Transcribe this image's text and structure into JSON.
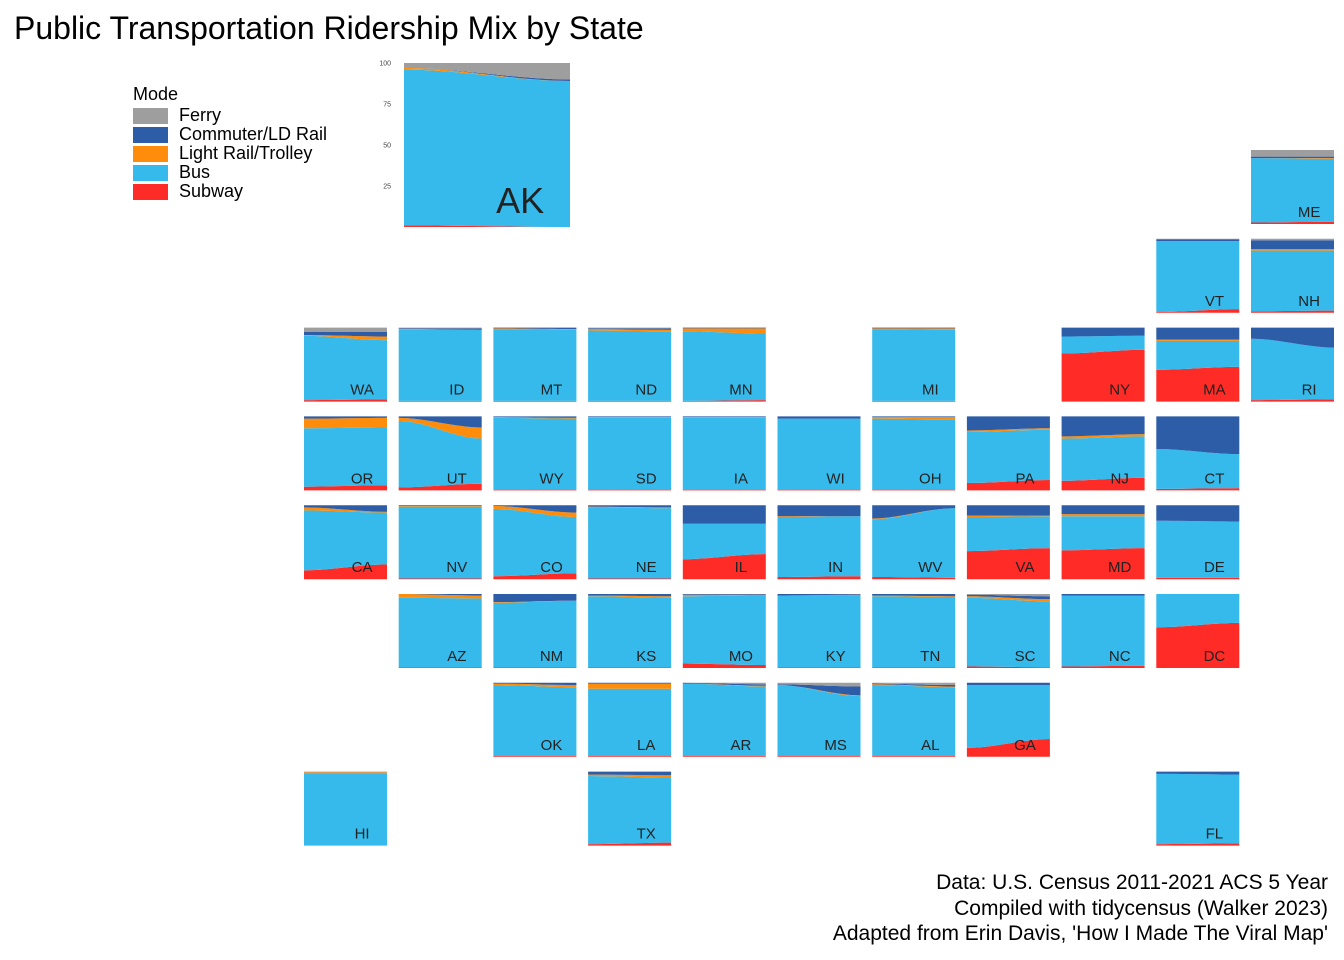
{
  "title": "Public Transportation Ridership Mix by State",
  "legend": {
    "title": "Mode",
    "items": [
      {
        "label": "Ferry",
        "color": "#9E9E9E"
      },
      {
        "label": "Commuter/LD Rail",
        "color": "#2E5DA8"
      },
      {
        "label": "Light Rail/Trolley",
        "color": "#FF8C0A"
      },
      {
        "label": "Bus",
        "color": "#36BAEB"
      },
      {
        "label": "Subway",
        "color": "#FF2B26"
      }
    ]
  },
  "caption": [
    "Data: U.S. Census 2011-2021 ACS 5 Year",
    "Compiled with tidycensus (Walker 2023) ",
    "Adapted from Erin Davis, 'How I Made The Viral Map'"
  ],
  "chart_data": {
    "type": "area",
    "description_of_values": "stacked share (%) per mode, start and end of 2011-2021 period",
    "series_order_bottom_to_top": [
      "Subway",
      "Bus",
      "Light Rail/Trolley",
      "Commuter/LD Rail",
      "Ferry"
    ],
    "ak_yticks": [
      25,
      50,
      75,
      100
    ],
    "ylim": [
      0,
      100
    ],
    "states": [
      {
        "abbr": "AK",
        "start": [
          1,
          95,
          1,
          0,
          3
        ],
        "end": [
          0,
          89,
          0,
          1,
          10
        ]
      },
      {
        "abbr": "ME",
        "start": [
          2,
          87,
          0,
          2,
          9
        ],
        "end": [
          3,
          85,
          1,
          2,
          9
        ]
      },
      {
        "abbr": "VT",
        "start": [
          1,
          96,
          0,
          2,
          1
        ],
        "end": [
          5,
          92,
          0,
          2,
          1
        ]
      },
      {
        "abbr": "NH",
        "start": [
          2,
          82,
          2,
          12,
          2
        ],
        "end": [
          3,
          81,
          2,
          12,
          2
        ]
      },
      {
        "abbr": "WA",
        "start": [
          2,
          87,
          1,
          4,
          6
        ],
        "end": [
          3,
          80,
          5,
          6,
          6
        ]
      },
      {
        "abbr": "ID",
        "start": [
          1,
          96,
          1,
          1,
          1
        ],
        "end": [
          1,
          96,
          0,
          2,
          1
        ]
      },
      {
        "abbr": "MT",
        "start": [
          1,
          97,
          1,
          1,
          0
        ],
        "end": [
          1,
          96,
          1,
          2,
          0
        ]
      },
      {
        "abbr": "ND",
        "start": [
          1,
          95,
          2,
          1,
          1
        ],
        "end": [
          1,
          94,
          2,
          2,
          1
        ]
      },
      {
        "abbr": "MN",
        "start": [
          1,
          94,
          4,
          1,
          0
        ],
        "end": [
          2,
          90,
          7,
          1,
          0
        ]
      },
      {
        "abbr": "MI",
        "start": [
          1,
          97,
          1,
          1,
          0
        ],
        "end": [
          1,
          96,
          2,
          1,
          0
        ]
      },
      {
        "abbr": "NY",
        "start": [
          65,
          23,
          0,
          12,
          0
        ],
        "end": [
          70,
          19,
          0,
          11,
          0
        ]
      },
      {
        "abbr": "MA",
        "start": [
          43,
          39,
          2,
          16,
          0
        ],
        "end": [
          47,
          35,
          2,
          16,
          0
        ]
      },
      {
        "abbr": "RI",
        "start": [
          2,
          83,
          0,
          15,
          0
        ],
        "end": [
          3,
          70,
          0,
          27,
          0
        ]
      },
      {
        "abbr": "OR",
        "start": [
          5,
          79,
          13,
          3,
          0
        ],
        "end": [
          7,
          78,
          13,
          2,
          0
        ]
      },
      {
        "abbr": "UT",
        "start": [
          4,
          90,
          4,
          2,
          0
        ],
        "end": [
          9,
          61,
          15,
          15,
          0
        ]
      },
      {
        "abbr": "WY",
        "start": [
          1,
          97,
          1,
          1,
          0
        ],
        "end": [
          1,
          96,
          1,
          2,
          0
        ]
      },
      {
        "abbr": "SD",
        "start": [
          1,
          97,
          1,
          1,
          0
        ],
        "end": [
          1,
          97,
          1,
          1,
          0
        ]
      },
      {
        "abbr": "IA",
        "start": [
          1,
          97,
          1,
          1,
          0
        ],
        "end": [
          1,
          97,
          1,
          1,
          0
        ]
      },
      {
        "abbr": "WI",
        "start": [
          1,
          96,
          0,
          3,
          0
        ],
        "end": [
          1,
          96,
          0,
          3,
          0
        ]
      },
      {
        "abbr": "OH",
        "start": [
          1,
          96,
          2,
          1,
          0
        ],
        "end": [
          1,
          95,
          3,
          1,
          0
        ]
      },
      {
        "abbr": "PA",
        "start": [
          10,
          69,
          2,
          19,
          0
        ],
        "end": [
          14,
          68,
          2,
          16,
          0
        ]
      },
      {
        "abbr": "NJ",
        "start": [
          13,
          57,
          3,
          27,
          0
        ],
        "end": [
          17,
          56,
          3,
          24,
          0
        ]
      },
      {
        "abbr": "CT",
        "start": [
          2,
          54,
          0,
          44,
          0
        ],
        "end": [
          3,
          46,
          0,
          51,
          0
        ]
      },
      {
        "abbr": "CA",
        "start": [
          12,
          81,
          4,
          3,
          0
        ],
        "end": [
          20,
          70,
          1,
          9,
          0
        ]
      },
      {
        "abbr": "NV",
        "start": [
          1,
          97,
          1,
          1,
          0
        ],
        "end": [
          1,
          97,
          1,
          1,
          0
        ]
      },
      {
        "abbr": "CO",
        "start": [
          4,
          91,
          4,
          1,
          0
        ],
        "end": [
          8,
          76,
          6,
          10,
          0
        ]
      },
      {
        "abbr": "NE",
        "start": [
          1,
          96,
          1,
          2,
          0
        ],
        "end": [
          1,
          95,
          1,
          3,
          0
        ]
      },
      {
        "abbr": "IL",
        "start": [
          27,
          48,
          0,
          25,
          0
        ],
        "end": [
          34,
          41,
          0,
          25,
          0
        ]
      },
      {
        "abbr": "IN",
        "start": [
          3,
          81,
          1,
          15,
          0
        ],
        "end": [
          4,
          81,
          0,
          15,
          0
        ]
      },
      {
        "abbr": "WV",
        "start": [
          3,
          78,
          1,
          18,
          0
        ],
        "end": [
          2,
          94,
          0,
          4,
          0
        ]
      },
      {
        "abbr": "VA",
        "start": [
          38,
          46,
          2,
          14,
          0
        ],
        "end": [
          42,
          43,
          1,
          14,
          0
        ]
      },
      {
        "abbr": "MD",
        "start": [
          39,
          46,
          3,
          12,
          0
        ],
        "end": [
          42,
          43,
          3,
          12,
          0
        ]
      },
      {
        "abbr": "DE",
        "start": [
          2,
          77,
          0,
          21,
          0
        ],
        "end": [
          2,
          76,
          0,
          22,
          0
        ]
      },
      {
        "abbr": "AZ",
        "start": [
          1,
          94,
          5,
          0,
          0
        ],
        "end": [
          1,
          93,
          4,
          2,
          0
        ]
      },
      {
        "abbr": "NM",
        "start": [
          1,
          87,
          1,
          11,
          0
        ],
        "end": [
          1,
          90,
          0,
          9,
          0
        ]
      },
      {
        "abbr": "KS",
        "start": [
          1,
          96,
          1,
          2,
          0
        ],
        "end": [
          1,
          94,
          2,
          3,
          0
        ]
      },
      {
        "abbr": "MO",
        "start": [
          6,
          91,
          2,
          1,
          0
        ],
        "end": [
          4,
          94,
          1,
          1,
          0
        ]
      },
      {
        "abbr": "KY",
        "start": [
          1,
          97,
          0,
          2,
          0
        ],
        "end": [
          1,
          97,
          1,
          1,
          0
        ]
      },
      {
        "abbr": "TN",
        "start": [
          1,
          96,
          1,
          2,
          0
        ],
        "end": [
          1,
          95,
          1,
          3,
          0
        ]
      },
      {
        "abbr": "SC",
        "start": [
          2,
          93,
          2,
          2,
          1
        ],
        "end": [
          1,
          89,
          3,
          4,
          3
        ]
      },
      {
        "abbr": "NC",
        "start": [
          2,
          96,
          0,
          2,
          0
        ],
        "end": [
          3,
          95,
          0,
          2,
          0
        ]
      },
      {
        "abbr": "DC",
        "start": [
          55,
          45,
          0,
          0,
          0
        ],
        "end": [
          61,
          39,
          0,
          0,
          0
        ]
      },
      {
        "abbr": "OK",
        "start": [
          1,
          96,
          2,
          1,
          0
        ],
        "end": [
          1,
          93,
          3,
          3,
          0
        ]
      },
      {
        "abbr": "LA",
        "start": [
          1,
          91,
          7,
          1,
          0
        ],
        "end": [
          1,
          91,
          7,
          1,
          0
        ]
      },
      {
        "abbr": "AR",
        "start": [
          1,
          98,
          0,
          1,
          0
        ],
        "end": [
          1,
          94,
          1,
          2,
          2
        ]
      },
      {
        "abbr": "MS",
        "start": [
          1,
          96,
          0,
          1,
          2
        ],
        "end": [
          1,
          81,
          1,
          12,
          5
        ]
      },
      {
        "abbr": "AL",
        "start": [
          1,
          96,
          1,
          1,
          1
        ],
        "end": [
          1,
          93,
          1,
          2,
          3
        ]
      },
      {
        "abbr": "GA",
        "start": [
          12,
          85,
          0,
          3,
          0
        ],
        "end": [
          24,
          73,
          0,
          3,
          0
        ]
      },
      {
        "abbr": "HI",
        "start": [
          0,
          98,
          1,
          0,
          1
        ],
        "end": [
          0,
          98,
          1,
          0,
          1
        ]
      },
      {
        "abbr": "TX",
        "start": [
          2,
          92,
          2,
          4,
          0
        ],
        "end": [
          4,
          88,
          3,
          5,
          0
        ]
      },
      {
        "abbr": "FL",
        "start": [
          2,
          95,
          0,
          3,
          0
        ],
        "end": [
          3,
          93,
          0,
          4,
          0
        ]
      }
    ]
  }
}
